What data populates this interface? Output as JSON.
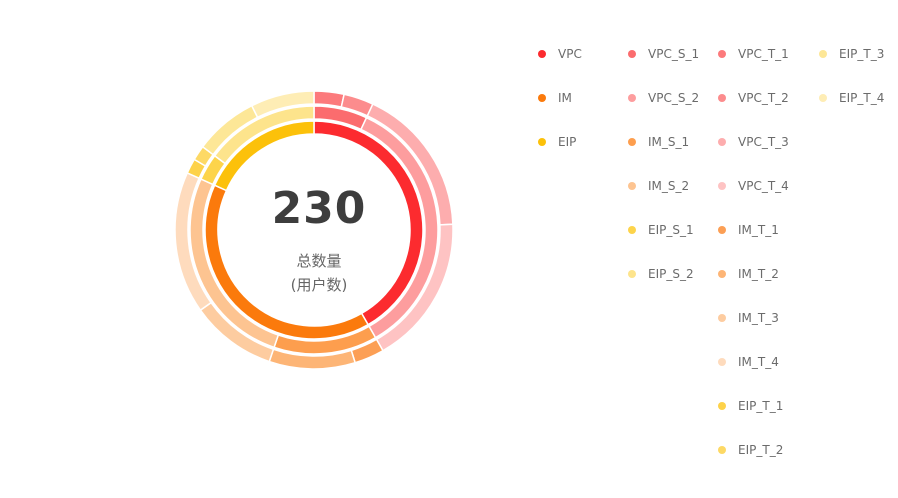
{
  "center": {
    "total": "230",
    "label_line1": "总数量",
    "label_line2": "(用户数)"
  },
  "chart_data": {
    "type": "pie",
    "variant": "nested-donut",
    "rings": [
      {
        "ring": "inner",
        "slices": [
          {
            "name": "VPC",
            "value": 96,
            "color": "#fc2b2f"
          },
          {
            "name": "IM",
            "value": 92,
            "color": "#fb7a0c"
          },
          {
            "name": "EIP",
            "value": 42,
            "color": "#fcc10a"
          }
        ]
      },
      {
        "ring": "middle",
        "slices": [
          {
            "name": "VPC_S_1",
            "value": 16,
            "color": "#fb6c6e"
          },
          {
            "name": "VPC_S_2",
            "value": 80,
            "color": "#fd9d9e"
          },
          {
            "name": "IM_S_1",
            "value": 31,
            "color": "#fd9e4e"
          },
          {
            "name": "IM_S_2",
            "value": 61,
            "color": "#fdc491"
          },
          {
            "name": "EIP_S_1",
            "value": 8,
            "color": "#fdd44b"
          },
          {
            "name": "EIP_S_2",
            "value": 34,
            "color": "#fde48c"
          }
        ]
      },
      {
        "ring": "outer",
        "slices": [
          {
            "name": "VPC_T_1",
            "value": 8,
            "color": "#fc7a7c"
          },
          {
            "name": "VPC_T_2",
            "value": 8,
            "color": "#fc8c8d"
          },
          {
            "name": "VPC_T_3",
            "value": 40,
            "color": "#fdadae"
          },
          {
            "name": "VPC_T_4",
            "value": 40,
            "color": "#fec3c3"
          },
          {
            "name": "IM_T_1",
            "value": 8,
            "color": "#fc9f55"
          },
          {
            "name": "IM_T_2",
            "value": 23,
            "color": "#fdb576"
          },
          {
            "name": "IM_T_3",
            "value": 23,
            "color": "#fdcca0"
          },
          {
            "name": "IM_T_4",
            "value": 38,
            "color": "#fedbbd"
          },
          {
            "name": "EIP_T_1",
            "value": 4,
            "color": "#fdd24a"
          },
          {
            "name": "EIP_T_2",
            "value": 4,
            "color": "#fdd965"
          },
          {
            "name": "EIP_T_3",
            "value": 17,
            "color": "#fde797"
          },
          {
            "name": "EIP_T_4",
            "value": 17,
            "color": "#feedb5"
          }
        ]
      }
    ],
    "legend": {
      "position": "right",
      "columns": [
        [
          {
            "name": "VPC",
            "color": "#fc2b2f"
          },
          {
            "name": "IM",
            "color": "#fb7a0c"
          },
          {
            "name": "EIP",
            "color": "#fcc10a"
          }
        ],
        [
          {
            "name": "VPC_S_1",
            "color": "#fb6c6e"
          },
          {
            "name": "VPC_S_2",
            "color": "#fd9d9e"
          },
          {
            "name": "IM_S_1",
            "color": "#fd9e4e"
          },
          {
            "name": "IM_S_2",
            "color": "#fdc491"
          },
          {
            "name": "EIP_S_1",
            "color": "#fdd44b"
          },
          {
            "name": "EIP_S_2",
            "color": "#fde48c"
          }
        ],
        [
          {
            "name": "VPC_T_1",
            "color": "#fc7a7c"
          },
          {
            "name": "VPC_T_2",
            "color": "#fc8c8d"
          },
          {
            "name": "VPC_T_3",
            "color": "#fdadae"
          },
          {
            "name": "VPC_T_4",
            "color": "#fec3c3"
          },
          {
            "name": "IM_T_1",
            "color": "#fc9f55"
          },
          {
            "name": "IM_T_2",
            "color": "#fdb576"
          },
          {
            "name": "IM_T_3",
            "color": "#fdcca0"
          },
          {
            "name": "IM_T_4",
            "color": "#fedbbd"
          },
          {
            "name": "EIP_T_1",
            "color": "#fdd24a"
          },
          {
            "name": "EIP_T_2",
            "color": "#fdd965"
          }
        ],
        [
          {
            "name": "EIP_T_3",
            "color": "#fde797"
          },
          {
            "name": "EIP_T_4",
            "color": "#feedb5"
          }
        ]
      ]
    }
  }
}
